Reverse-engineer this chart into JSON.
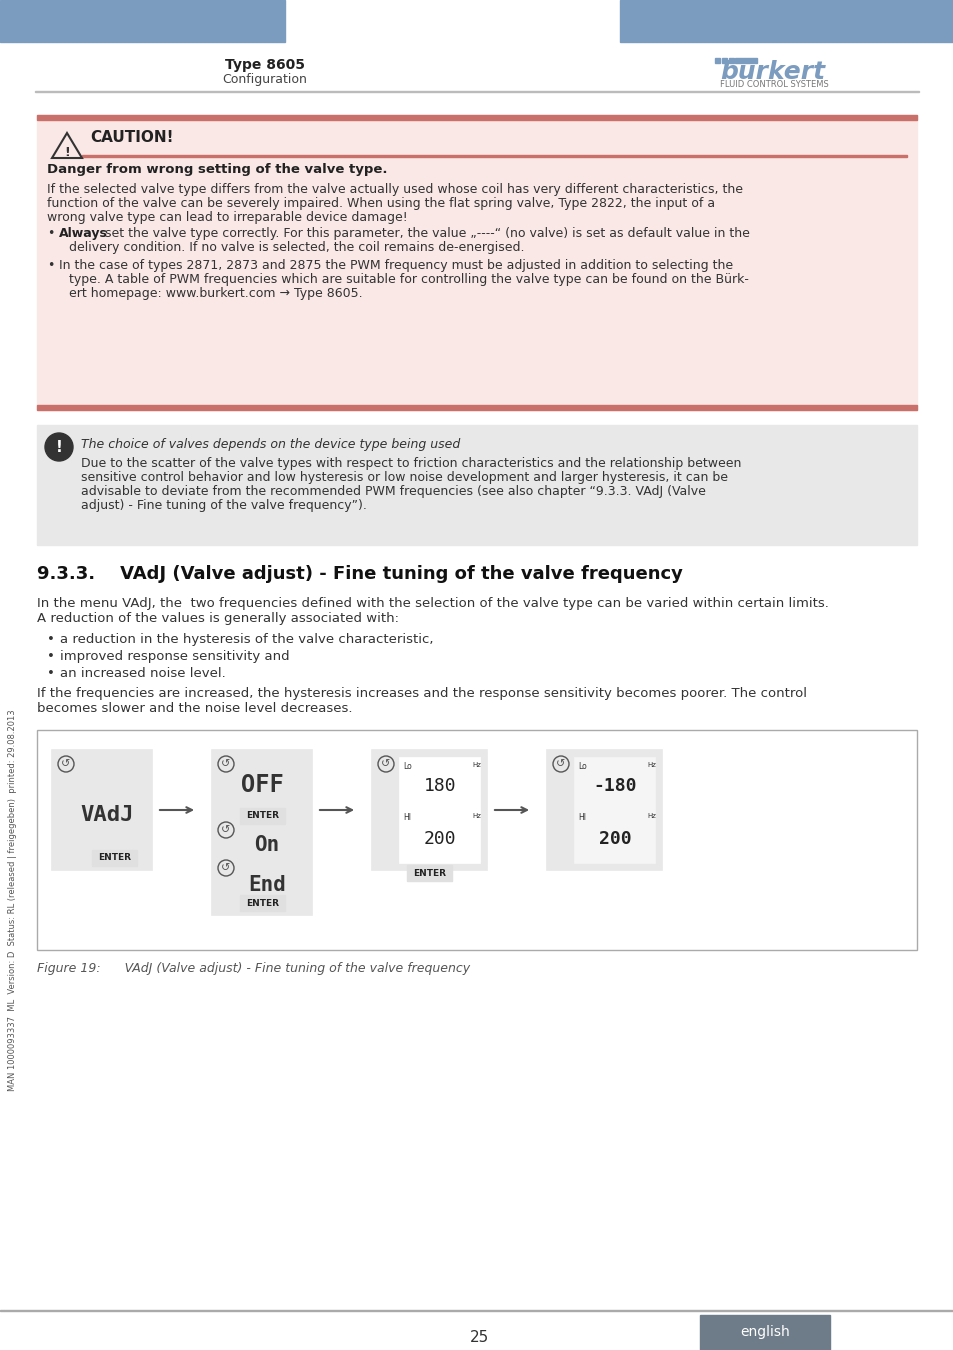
{
  "page_num": "25",
  "header_title": "Type 8605",
  "header_subtitle": "Configuration",
  "header_bar_color": "#7B9BBF",
  "footer_lang": "english",
  "footer_bg": "#6E7B88",
  "side_text": "MAN 1000093337  ML  Version: D  Status: RL (released | freigegeben)  printed: 29.08.2013",
  "caution_title": "CAUTION!",
  "caution_bar_color": "#C9706A",
  "caution_bg": "#F9E8E6",
  "caution_bold_line": "Danger from wrong setting of the valve type.",
  "caution_para1": "If the selected valve type differs from the valve actually used whose coil has very different characteristics, the\nfunction of the valve can be severely impaired. When using the flat spring valve, Type 2822, the input of a\nwrong valve type can lead to irreparable device damage!",
  "caution_bullet1_bold": "Always",
  "caution_bullet1_rest": " set the valve type correctly. For this parameter, the value „----“ (no valve) is set as default value in the\ndelivery condition. If no valve is selected, the coil remains de-energised.",
  "caution_bullet2": "In the case of types 2871, 2873 and 2875 the PWM frequency must be adjusted in addition to selecting the\ntype. A table of PWM frequencies which are suitable for controlling the valve type can be found on the Bürk-\nert homepage: www.burkert.com → Type 8605.",
  "note_bg": "#E8E8E8",
  "note_title": "The choice of valves depends on the device type being used",
  "note_body": "Due to the scatter of the valve types with respect to friction characteristics and the relationship between\nsensitive control behavior and low hysteresis or low noise development and larger hysteresis, it can be\nadvisable to deviate from the recommended PWM frequencies (see also chapter “9.3.3. VAdJ (Valve\nadjust) - Fine tuning of the valve frequency”).",
  "section_title": "9.3.3.    VAdJ (Valve adjust) - Fine tuning of the valve frequency",
  "section_para": "In the menu VAdJ, the  two frequencies defined with the selection of the valve type can be varied within certain limits.\nA reduction of the values is generally associated with:",
  "bullet_a": "a reduction in the hysteresis of the valve characteristic,",
  "bullet_b": "improved response sensitivity and",
  "bullet_c": "an increased noise level.",
  "section_para2": "If the frequencies are increased, the hysteresis increases and the response sensitivity becomes poorer. The control\nbecomes slower and the noise level decreases.",
  "fig_caption": "Figure 19:      VAdJ (Valve adjust) - Fine tuning of the valve frequency",
  "line_color": "#AAAAAA",
  "text_color": "#333333",
  "section_title_color": "#1A1A1A"
}
